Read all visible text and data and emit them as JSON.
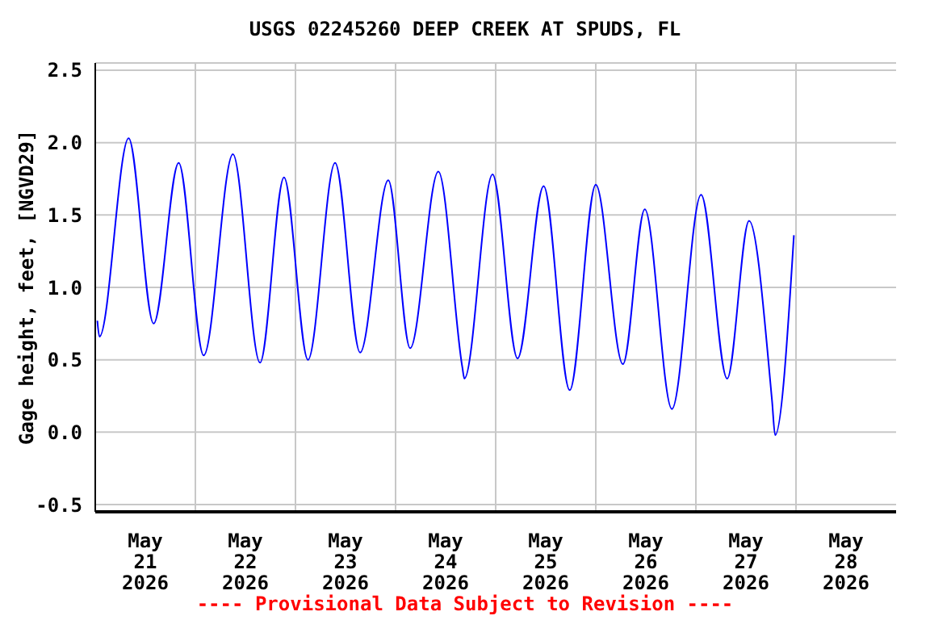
{
  "chart_data": {
    "type": "line",
    "title": "USGS 02245260 DEEP CREEK AT SPUDS, FL",
    "ylabel": "Gage height, feet, [NGVD29]",
    "annotations": [
      "---- Provisional Data Subject to Revision ----"
    ],
    "x": [
      "2026-05-21T00:30",
      "2026-05-21T01:00",
      "2026-05-21T08:00",
      "2026-05-21T14:00",
      "2026-05-21T20:00",
      "2026-05-22T02:00",
      "2026-05-22T09:00",
      "2026-05-22T15:30",
      "2026-05-22T21:15",
      "2026-05-23T03:00",
      "2026-05-23T09:30",
      "2026-05-23T15:30",
      "2026-05-23T22:15",
      "2026-05-24T03:30",
      "2026-05-24T10:15",
      "2026-05-24T16:00",
      "2026-05-24T16:30",
      "2026-05-24T23:15",
      "2026-05-25T05:15",
      "2026-05-25T11:30",
      "2026-05-25T17:45",
      "2026-05-26T00:00",
      "2026-05-26T06:30",
      "2026-05-26T11:45",
      "2026-05-26T18:15",
      "2026-05-27T01:15",
      "2026-05-27T07:30",
      "2026-05-27T12:45",
      "2026-05-27T18:15",
      "2026-05-27T19:00",
      "2026-05-27T23:30"
    ],
    "series": [
      {
        "color": "#0000ff",
        "values": [
          0.77,
          0.66,
          2.03,
          0.75,
          1.86,
          0.53,
          1.92,
          0.48,
          1.76,
          0.5,
          1.86,
          0.55,
          1.74,
          0.58,
          1.8,
          0.45,
          0.37,
          1.78,
          0.51,
          1.7,
          0.29,
          1.71,
          0.47,
          1.54,
          0.16,
          1.64,
          0.37,
          1.46,
          0.22,
          -0.02,
          1.36
        ]
      }
    ],
    "xlim": [
      "2026-05-21T00:00",
      "2026-05-29T00:00"
    ],
    "xticks": [
      {
        "value": "2026-05-21T12:00",
        "label": "May\n21\n2026"
      },
      {
        "value": "2026-05-22T00:00",
        "label": null
      },
      {
        "value": "2026-05-22T12:00",
        "label": "May\n22\n2026"
      },
      {
        "value": "2026-05-23T00:00",
        "label": null
      },
      {
        "value": "2026-05-23T12:00",
        "label": "May\n23\n2026"
      },
      {
        "value": "2026-05-24T00:00",
        "label": null
      },
      {
        "value": "2026-05-24T12:00",
        "label": "May\n24\n2026"
      },
      {
        "value": "2026-05-25T00:00",
        "label": null
      },
      {
        "value": "2026-05-25T12:00",
        "label": "May\n25\n2026"
      },
      {
        "value": "2026-05-26T00:00",
        "label": null
      },
      {
        "value": "2026-05-26T12:00",
        "label": "May\n26\n2026"
      },
      {
        "value": "2026-05-27T00:00",
        "label": null
      },
      {
        "value": "2026-05-27T12:00",
        "label": "May\n27\n2026"
      },
      {
        "value": "2026-05-28T00:00",
        "label": null
      },
      {
        "value": "2026-05-28T12:00",
        "label": "May\n28\n2026"
      }
    ],
    "ylim": [
      -0.55,
      2.55
    ],
    "yticks": [
      {
        "value": -0.5,
        "label": "-0.5"
      },
      {
        "value": 0,
        "label": "0.0"
      },
      {
        "value": 0.5,
        "label": "0.5"
      },
      {
        "value": 1,
        "label": "1.0"
      },
      {
        "value": 1.5,
        "label": "1.5"
      },
      {
        "value": 2,
        "label": "2.0"
      },
      {
        "value": 2.5,
        "label": "2.5"
      }
    ],
    "grid": true,
    "marker": "none",
    "line_style": "solid"
  }
}
